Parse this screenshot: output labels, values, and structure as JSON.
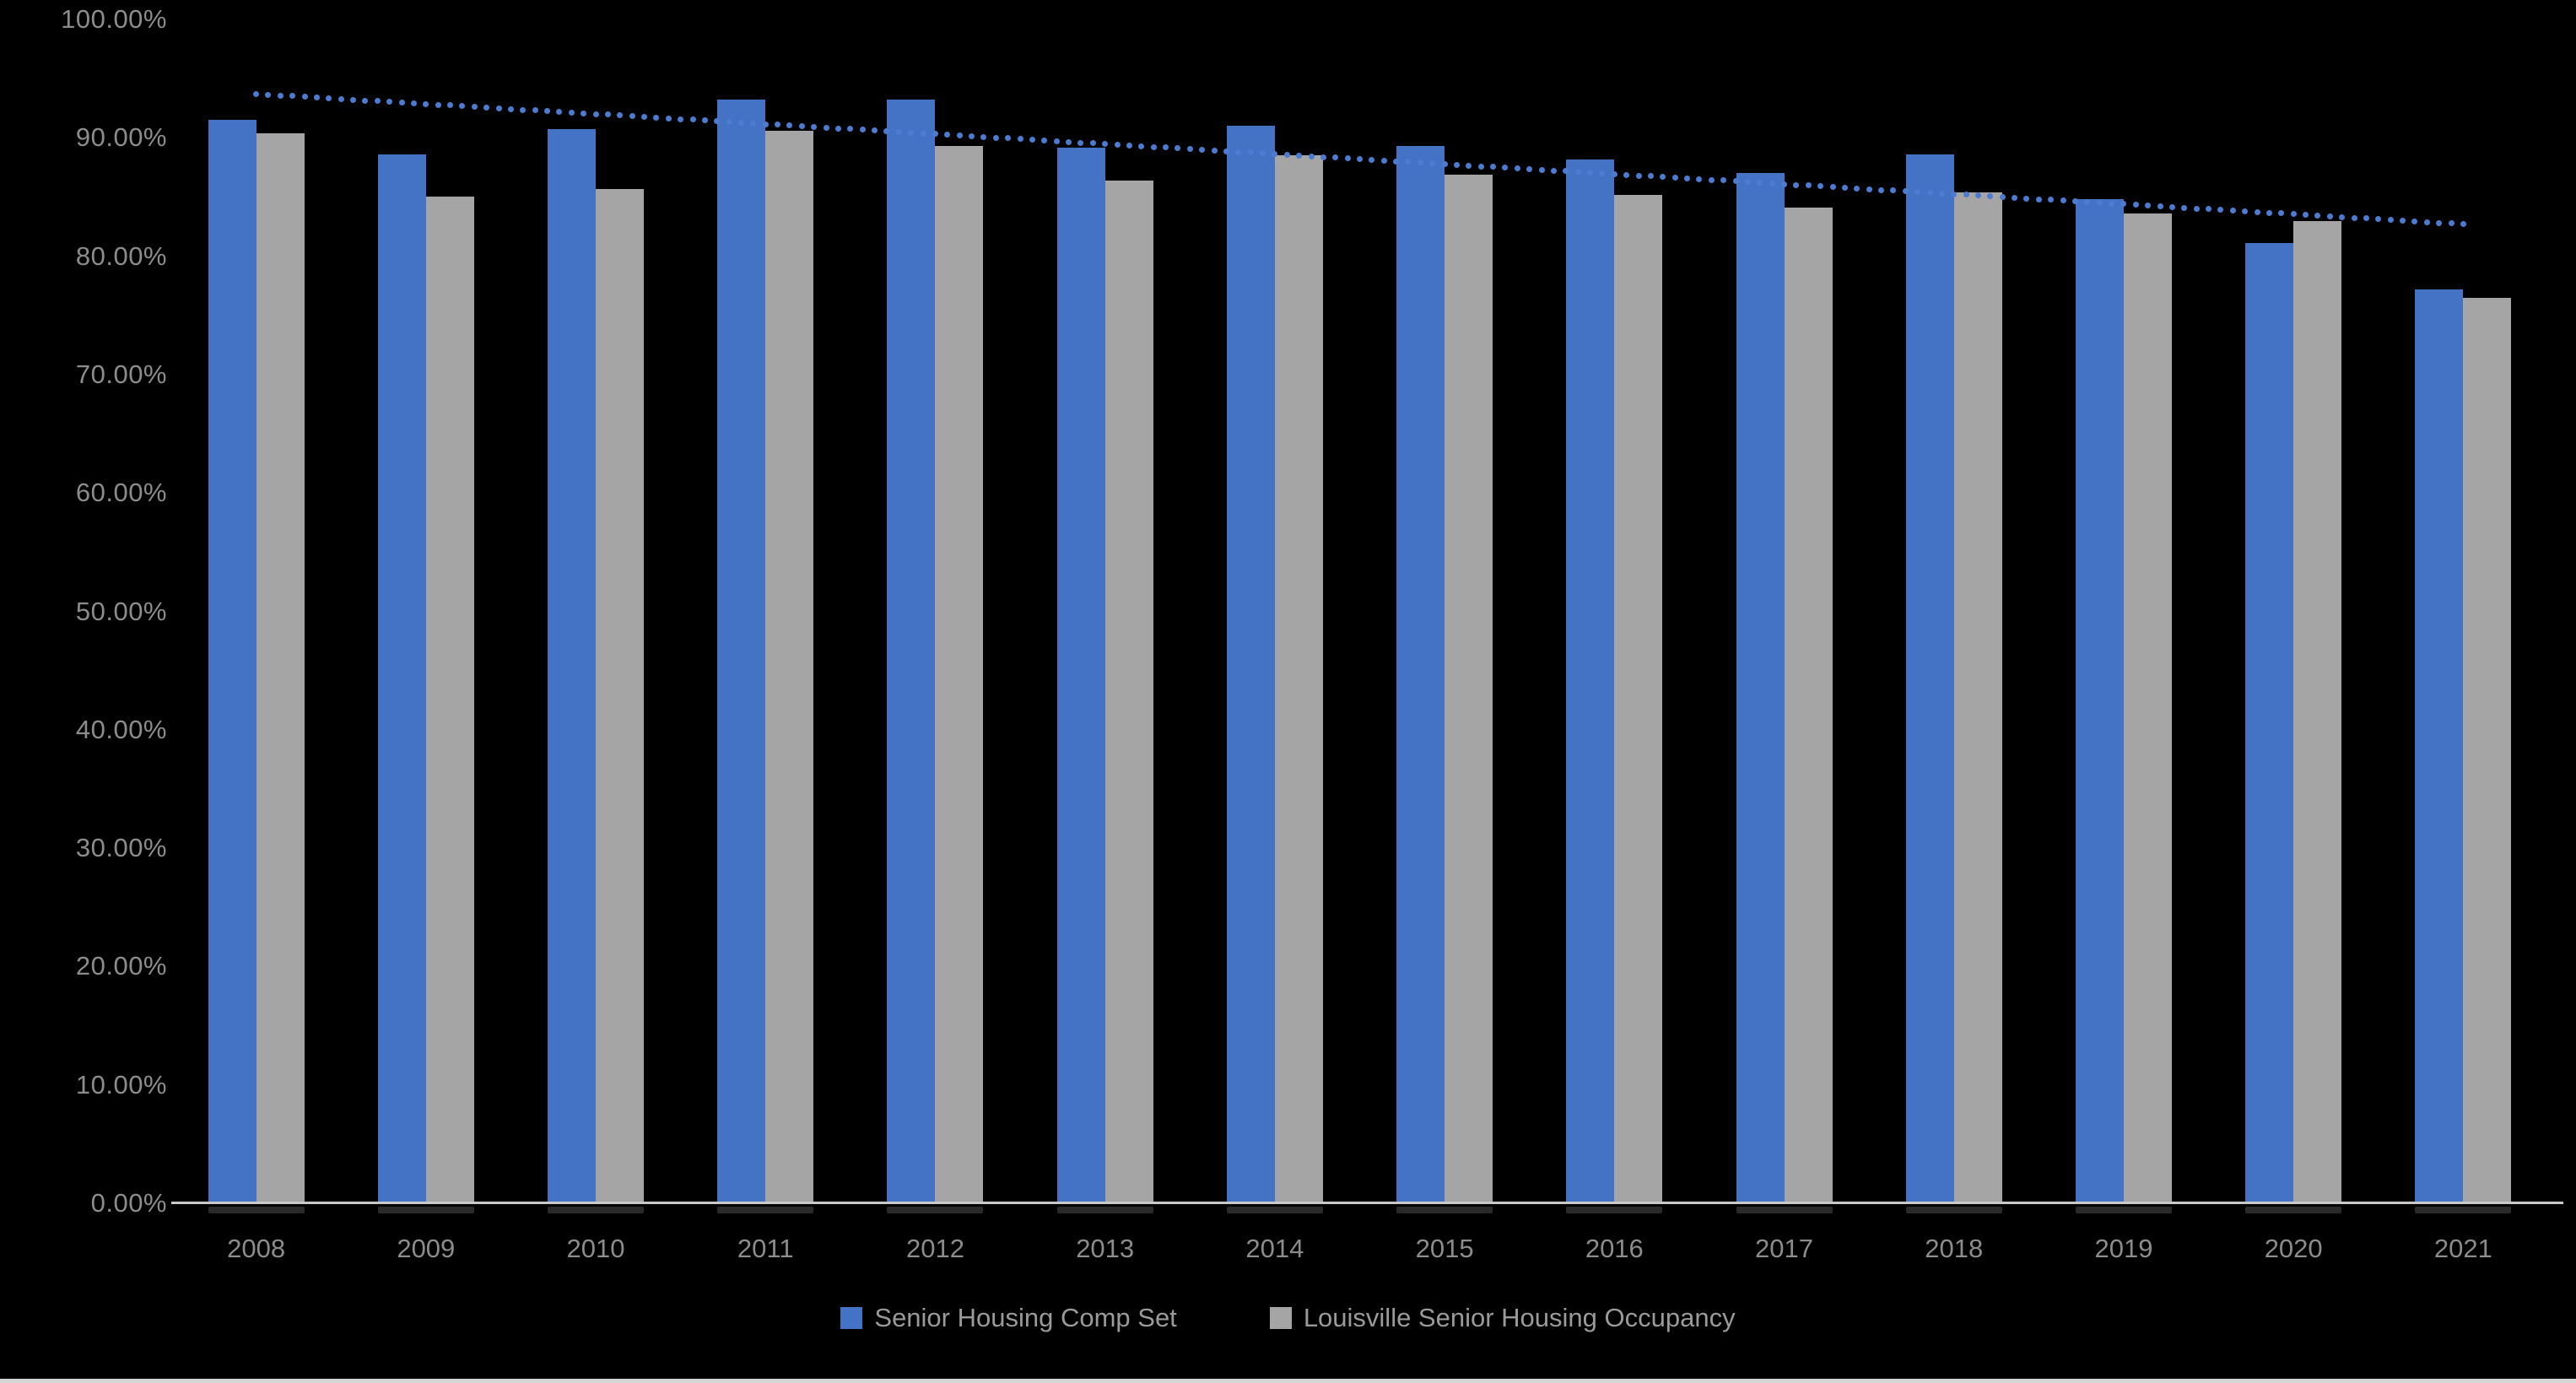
{
  "chart_data": {
    "type": "bar",
    "title": "",
    "categories": [
      "2008",
      "2009",
      "2010",
      "2011",
      "2012",
      "2013",
      "2014",
      "2015",
      "2016",
      "2017",
      "2018",
      "2019",
      "2020",
      "2021"
    ],
    "series": [
      {
        "name": "Senior Housing Comp Set",
        "color": "#4472C4",
        "values": [
          91.5,
          88.6,
          90.7,
          93.2,
          93.2,
          89.2,
          91.0,
          89.3,
          88.2,
          87.0,
          88.6,
          84.8,
          81.1,
          77.2
        ]
      },
      {
        "name": "Louisville Senior Housing Occupancy",
        "color": "#A5A5A5",
        "values": [
          90.4,
          85.0,
          85.7,
          90.6,
          89.3,
          86.4,
          88.5,
          86.9,
          85.2,
          84.1,
          85.4,
          83.6,
          83.0,
          76.5
        ]
      }
    ],
    "trendline": {
      "type": "linear-dotted",
      "color": "#4c7bd0",
      "start_value": 93.7,
      "end_value": 82.7,
      "spans": "2008 center to 2021 center"
    },
    "y_axis": {
      "min": 0,
      "max": 100,
      "step": 10,
      "unit": "%",
      "tick_labels": [
        "100.00%",
        "90.00%",
        "80.00%",
        "70.00%",
        "60.00%",
        "50.00%",
        "40.00%",
        "30.00%",
        "20.00%",
        "10.00%",
        "0.00%"
      ]
    },
    "x_axis": {
      "tick_labels": [
        "2008",
        "2009",
        "2010",
        "2011",
        "2012",
        "2013",
        "2014",
        "2015",
        "2016",
        "2017",
        "2018",
        "2019",
        "2020",
        "2021"
      ]
    },
    "grid": false,
    "legend_position": "bottom",
    "background_color": "#000000"
  },
  "legend": {
    "items": [
      {
        "label": "Senior Housing Comp Set",
        "color": "#4472C4"
      },
      {
        "label": "Louisville Senior Housing Occupancy",
        "color": "#A5A5A5"
      }
    ]
  },
  "colors": {
    "background": "#000000",
    "axis_line": "#c9c9c9",
    "axis_text": "#8c8c8c",
    "legend_text": "#9a9a9a",
    "trend_dot": "#4c7bd0",
    "bottom_strip": "#d6d6d6"
  }
}
